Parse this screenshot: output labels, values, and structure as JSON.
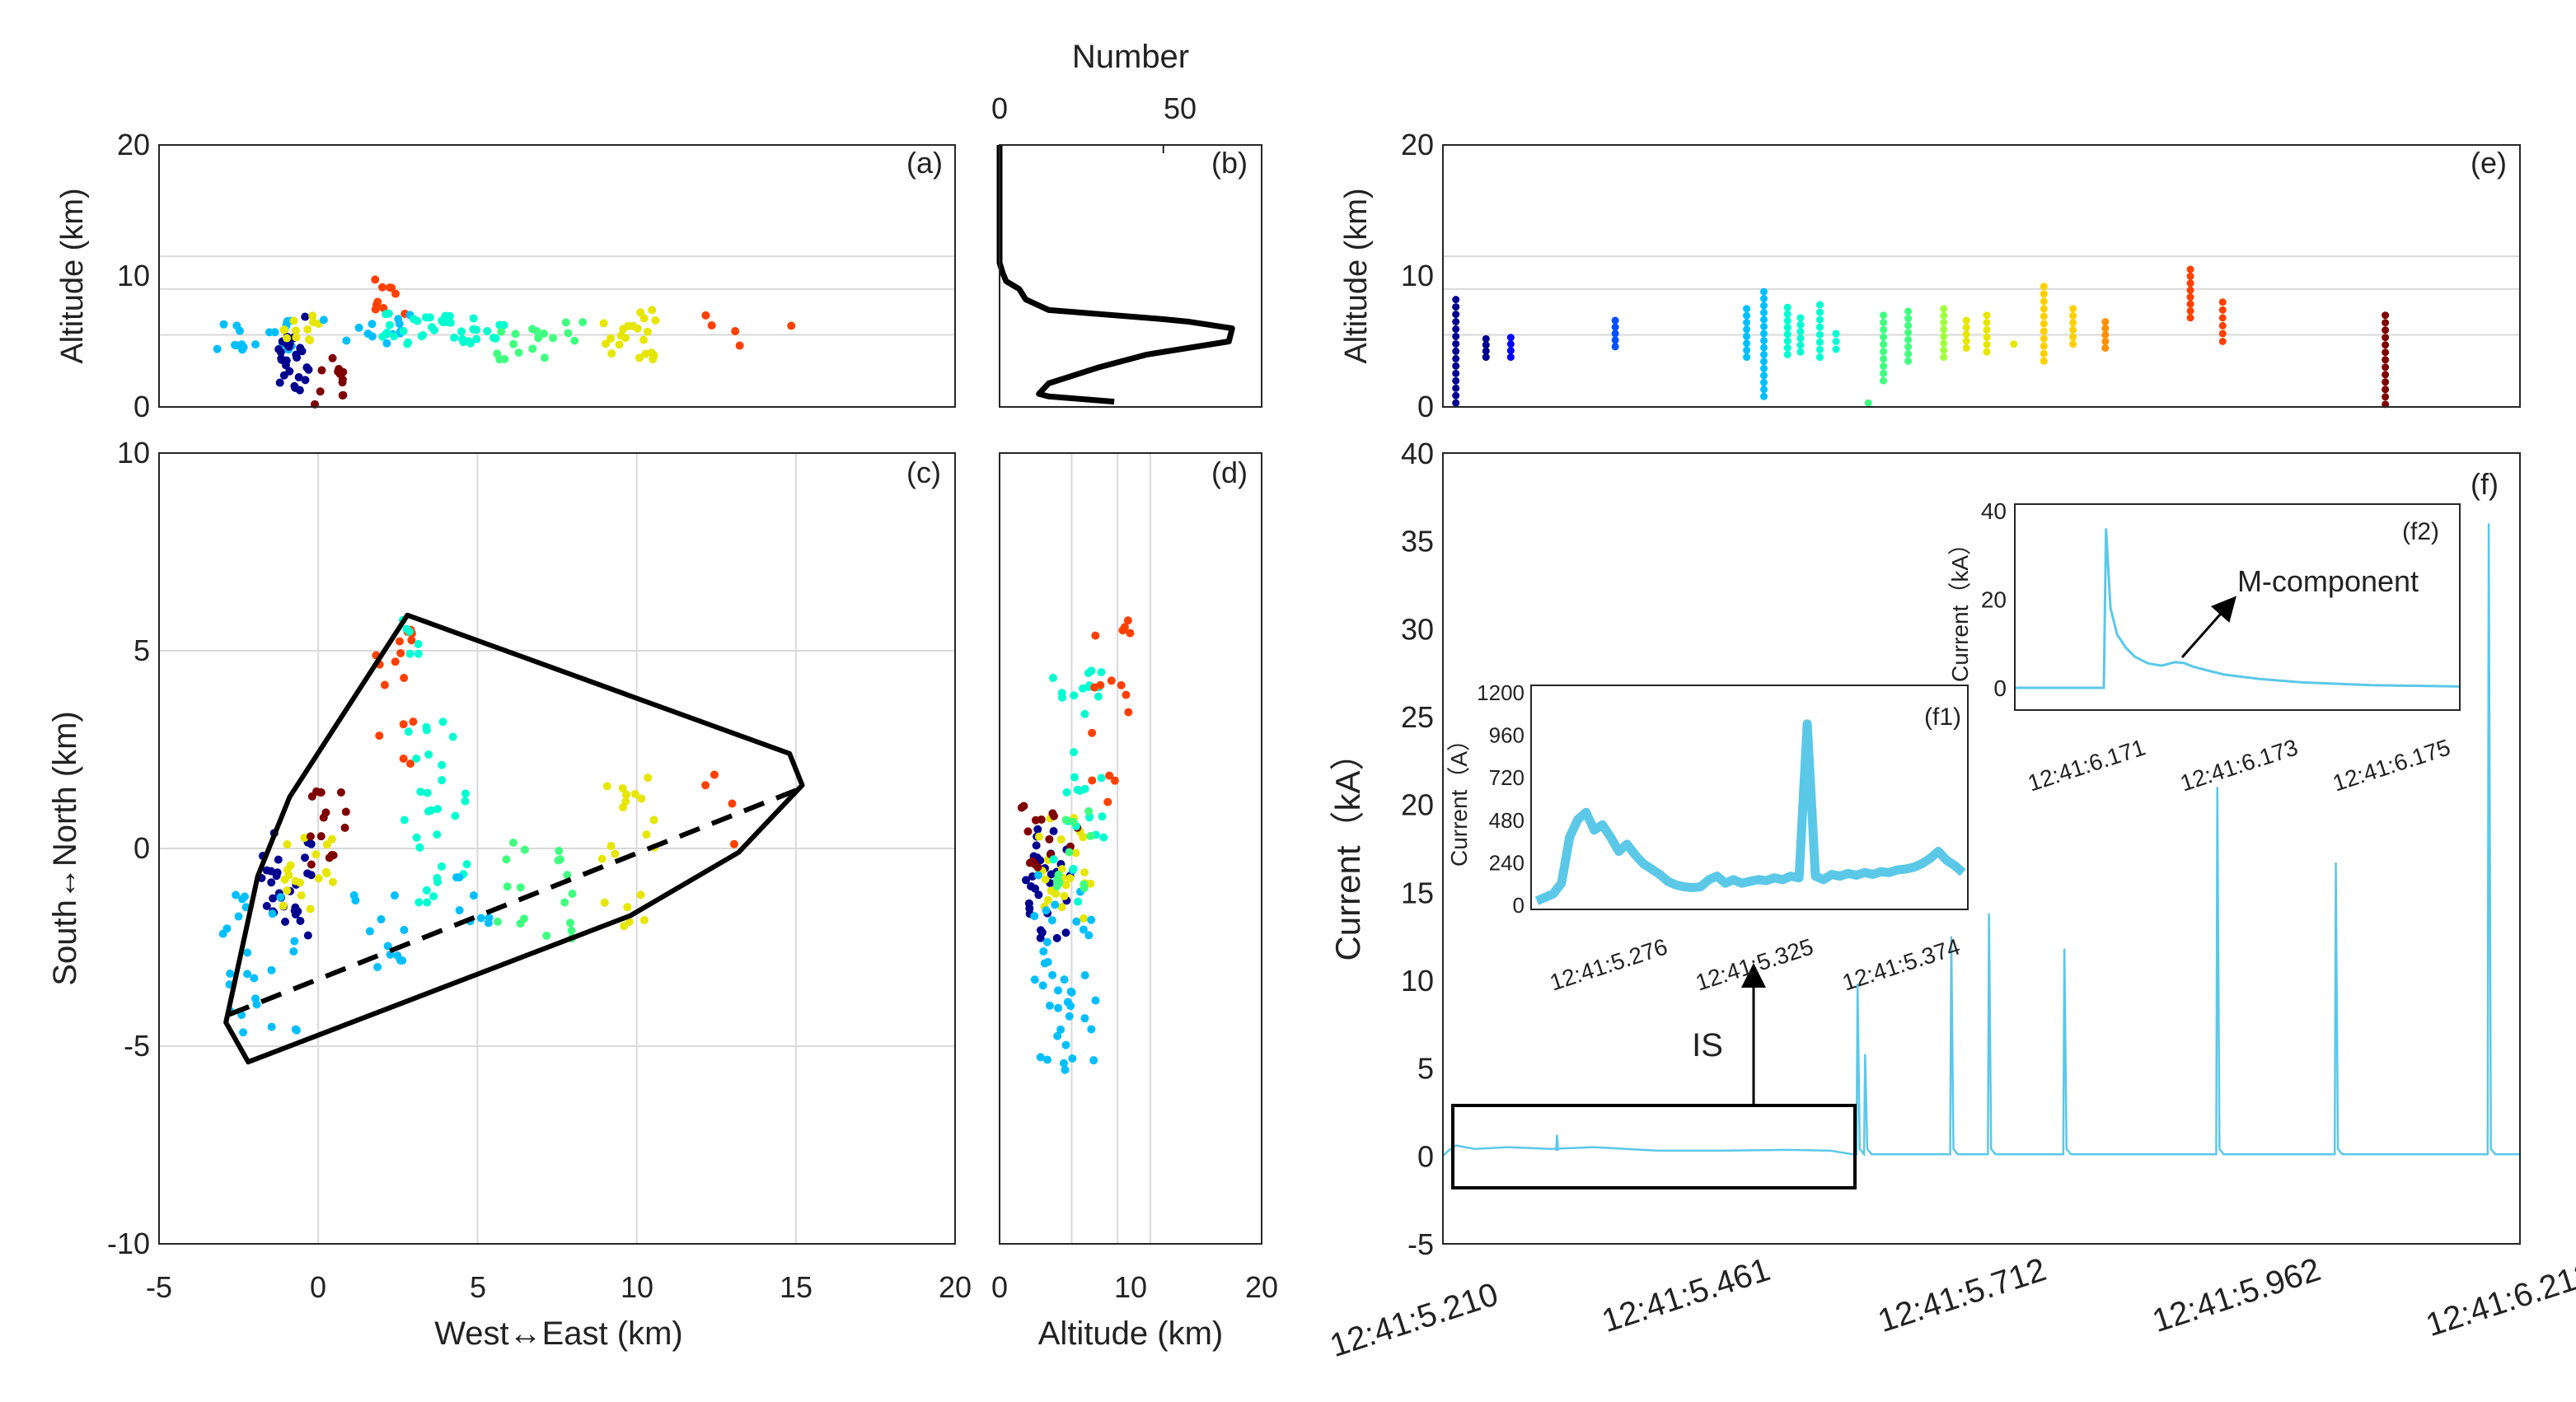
{
  "figure": {
    "colors": {
      "frame": "#262626",
      "grid": "#d9d9d9",
      "current": "#5bc8e8",
      "hull": "#000000",
      "palette": [
        "#00008f",
        "#0000ff",
        "#0050ff",
        "#00bfff",
        "#00ffd0",
        "#40ff80",
        "#a0ff40",
        "#e6e600",
        "#ffd000",
        "#ff9000",
        "#ff4000",
        "#c01000",
        "#7f0000"
      ]
    }
  },
  "chart_data": [
    {
      "id": "a",
      "type": "scatter",
      "panel_label": "(a)",
      "xlabel": "",
      "ylabel": "Altitude (km)",
      "xlim": [
        -5,
        20
      ],
      "ylim": [
        0,
        20
      ],
      "yticks": [
        "0",
        "10",
        "20"
      ],
      "reference_lines_km": [
        5.5,
        9.0,
        11.5
      ],
      "color_by": "time_index",
      "clusters": [
        {
          "x": -2.0,
          "y": 5.5,
          "w": 1.2,
          "h": 1.2,
          "n": 22,
          "c": 3
        },
        {
          "x": -0.8,
          "y": 4.0,
          "w": 0.5,
          "h": 3.0,
          "n": 28,
          "c": 0
        },
        {
          "x": -0.5,
          "y": 6.0,
          "w": 0.6,
          "h": 1.0,
          "n": 12,
          "c": 7
        },
        {
          "x": 0.3,
          "y": 2.0,
          "w": 0.6,
          "h": 2.0,
          "n": 12,
          "c": 12
        },
        {
          "x": 2.3,
          "y": 8.5,
          "w": 0.6,
          "h": 1.4,
          "n": 10,
          "c": 10
        },
        {
          "x": 1.5,
          "y": 6.0,
          "w": 1.4,
          "h": 1.2,
          "n": 14,
          "c": 3
        },
        {
          "x": 4.0,
          "y": 6.0,
          "w": 2.0,
          "h": 1.2,
          "n": 40,
          "c": 4
        },
        {
          "x": 7.0,
          "y": 5.0,
          "w": 1.5,
          "h": 1.5,
          "n": 18,
          "c": 5
        },
        {
          "x": 9.8,
          "y": 5.5,
          "w": 0.9,
          "h": 2.0,
          "n": 22,
          "c": 7
        },
        {
          "x": 13.5,
          "y": 6.0,
          "w": 1.5,
          "h": 1.5,
          "n": 5,
          "c": 10
        }
      ]
    },
    {
      "id": "b",
      "type": "line",
      "panel_label": "(b)",
      "title": "Number",
      "xlim": [
        0,
        80
      ],
      "ylim": [
        0,
        20
      ],
      "xticks": [
        "0",
        "50"
      ],
      "x": [
        0,
        0,
        0,
        1,
        2,
        6,
        8,
        15,
        50,
        58,
        71,
        70,
        45,
        30,
        15,
        12,
        15,
        35
      ],
      "y": [
        20,
        15,
        11,
        10.2,
        9.6,
        9.0,
        8.2,
        7.4,
        6.7,
        6.5,
        6.0,
        5.0,
        4.0,
        3.0,
        1.8,
        1.0,
        0.8,
        0.4
      ]
    },
    {
      "id": "c",
      "type": "scatter",
      "panel_label": "(c)",
      "xlabel": "West↔East (km)",
      "ylabel": "South↔North (km)",
      "xlim": [
        -5,
        20
      ],
      "ylim": [
        -10,
        10
      ],
      "xticks": [
        "-5",
        "0",
        "5",
        "10",
        "15",
        "20"
      ],
      "yticks": [
        "-10",
        "-5",
        "0",
        "5",
        "10"
      ],
      "grid_x": [
        0,
        5,
        10,
        15
      ],
      "grid_y": [
        -5,
        0,
        5
      ],
      "hull_x": [
        2.8,
        -0.9,
        -1.9,
        -2.9,
        -2.2,
        9.8,
        13.2,
        15.2,
        14.8
      ],
      "hull_y": [
        5.9,
        1.3,
        -0.7,
        -4.4,
        -5.4,
        -1.7,
        -0.1,
        1.6,
        2.4
      ],
      "dashed_line_x": [
        -2.8,
        15.1
      ],
      "dashed_line_y": [
        -4.2,
        1.5
      ],
      "clusters": [
        {
          "x": -1.0,
          "y": -0.9,
          "w": 0.8,
          "h": 1.4,
          "n": 30,
          "c": 0
        },
        {
          "x": -0.3,
          "y": -0.5,
          "w": 0.8,
          "h": 1.2,
          "n": 20,
          "c": 7
        },
        {
          "x": 0.3,
          "y": 0.5,
          "w": 0.6,
          "h": 1.0,
          "n": 15,
          "c": 12
        },
        {
          "x": -1.8,
          "y": -3.2,
          "w": 1.2,
          "h": 2.4,
          "n": 25,
          "c": 3
        },
        {
          "x": 1.8,
          "y": -2.2,
          "w": 1.0,
          "h": 1.2,
          "n": 12,
          "c": 3
        },
        {
          "x": 2.4,
          "y": 3.8,
          "w": 0.6,
          "h": 2.0,
          "n": 16,
          "c": 10
        },
        {
          "x": 3.0,
          "y": 5.3,
          "w": 0.4,
          "h": 0.8,
          "n": 6,
          "c": 4
        },
        {
          "x": 3.7,
          "y": 1.0,
          "w": 1.0,
          "h": 2.4,
          "n": 30,
          "c": 4
        },
        {
          "x": 4.8,
          "y": -1.3,
          "w": 0.6,
          "h": 0.8,
          "n": 8,
          "c": 3
        },
        {
          "x": 7.0,
          "y": -0.9,
          "w": 1.5,
          "h": 1.4,
          "n": 18,
          "c": 5
        },
        {
          "x": 9.8,
          "y": 0.0,
          "w": 0.9,
          "h": 2.0,
          "n": 20,
          "c": 7
        },
        {
          "x": 12.5,
          "y": 0.8,
          "w": 0.7,
          "h": 1.2,
          "n": 4,
          "c": 10
        }
      ]
    },
    {
      "id": "d",
      "type": "scatter",
      "panel_label": "(d)",
      "xlabel": "Altitude (km)",
      "xlim": [
        0,
        20
      ],
      "ylim": [
        -10,
        10
      ],
      "xticks": [
        "0",
        "10",
        "20"
      ],
      "reference_lines_km": [
        5.5,
        9.0,
        11.5
      ],
      "clusters": [
        {
          "x": 3.5,
          "y": -0.9,
          "w": 2.0,
          "h": 1.4,
          "n": 30,
          "c": 0
        },
        {
          "x": 5.0,
          "y": -0.5,
          "w": 2.0,
          "h": 1.4,
          "n": 25,
          "c": 7
        },
        {
          "x": 3.5,
          "y": 0.3,
          "w": 2.5,
          "h": 0.8,
          "n": 15,
          "c": 12
        },
        {
          "x": 5.0,
          "y": -3.0,
          "w": 2.5,
          "h": 2.6,
          "n": 40,
          "c": 3
        },
        {
          "x": 6.0,
          "y": 1.5,
          "w": 2.0,
          "h": 3.0,
          "n": 30,
          "c": 4
        },
        {
          "x": 8.5,
          "y": 3.5,
          "w": 1.5,
          "h": 2.5,
          "n": 16,
          "c": 10
        },
        {
          "x": 5.5,
          "y": 0.0,
          "w": 2.0,
          "h": 1.0,
          "n": 12,
          "c": 5
        }
      ]
    },
    {
      "id": "e",
      "type": "scatter",
      "panel_label": "(e)",
      "ylabel": "Altitude (km)",
      "ylim": [
        0,
        20
      ],
      "yticks": [
        "0",
        "10",
        "20"
      ],
      "reference_lines_km": [
        5.5,
        9.0,
        11.5
      ],
      "columns": [
        {
          "t": 0.012,
          "ymin": 0.3,
          "ymax": 8.2,
          "c": 0
        },
        {
          "t": 0.04,
          "ymin": 3.8,
          "ymax": 5.2,
          "c": 0
        },
        {
          "t": 0.063,
          "ymin": 3.8,
          "ymax": 5.3,
          "c": 1
        },
        {
          "t": 0.16,
          "ymin": 4.6,
          "ymax": 6.6,
          "c": 2
        },
        {
          "t": 0.282,
          "ymin": 3.8,
          "ymax": 7.5,
          "c": 3
        },
        {
          "t": 0.298,
          "ymin": 0.8,
          "ymax": 8.8,
          "c": 3
        },
        {
          "t": 0.32,
          "ymin": 4.0,
          "ymax": 7.6,
          "c": 4
        },
        {
          "t": 0.332,
          "ymin": 4.2,
          "ymax": 6.8,
          "c": 4
        },
        {
          "t": 0.35,
          "ymin": 3.8,
          "ymax": 7.8,
          "c": 4
        },
        {
          "t": 0.365,
          "ymin": 4.4,
          "ymax": 5.6,
          "c": 4
        },
        {
          "t": 0.395,
          "ymin": 0.3,
          "ymax": 0.4,
          "c": 5
        },
        {
          "t": 0.409,
          "ymin": 2.0,
          "ymax": 7.0,
          "c": 5
        },
        {
          "t": 0.432,
          "ymin": 3.5,
          "ymax": 7.3,
          "c": 5
        },
        {
          "t": 0.465,
          "ymin": 3.8,
          "ymax": 7.5,
          "c": 6
        },
        {
          "t": 0.486,
          "ymin": 4.5,
          "ymax": 6.6,
          "c": 7
        },
        {
          "t": 0.505,
          "ymin": 4.2,
          "ymax": 7.0,
          "c": 7
        },
        {
          "t": 0.53,
          "ymin": 4.8,
          "ymax": 5.0,
          "c": 7
        },
        {
          "t": 0.558,
          "ymin": 3.5,
          "ymax": 9.2,
          "c": 8
        },
        {
          "t": 0.585,
          "ymin": 4.8,
          "ymax": 7.5,
          "c": 8
        },
        {
          "t": 0.615,
          "ymin": 4.5,
          "ymax": 6.5,
          "c": 9
        },
        {
          "t": 0.694,
          "ymin": 6.8,
          "ymax": 10.5,
          "c": 10
        },
        {
          "t": 0.724,
          "ymin": 5.0,
          "ymax": 8.0,
          "c": 10
        },
        {
          "t": 0.875,
          "ymin": 0.2,
          "ymax": 7.0,
          "c": 12
        }
      ]
    },
    {
      "id": "f",
      "type": "line",
      "panel_label": "(f)",
      "ylabel": "Current（kA）",
      "ylim": [
        -5,
        40
      ],
      "yticks": [
        "-5",
        "0",
        "5",
        "10",
        "15",
        "20",
        "25",
        "30",
        "35",
        "40"
      ],
      "xticks": [
        "12:41:5.210",
        "12:41:5.461",
        "12:41:5.712",
        "12:41:5.962",
        "12:41:6.213"
      ],
      "annotation": "IS",
      "peaks_kA": [
        {
          "t": 0.385,
          "value": 9.8
        },
        {
          "t": 0.392,
          "value": 5.8
        },
        {
          "t": 0.472,
          "value": 12.5
        },
        {
          "t": 0.507,
          "value": 13.8
        },
        {
          "t": 0.577,
          "value": 11.8
        },
        {
          "t": 0.719,
          "value": 21.0
        },
        {
          "t": 0.829,
          "value": 16.7
        },
        {
          "t": 0.971,
          "value": 36.0
        }
      ]
    },
    {
      "id": "f1",
      "type": "line",
      "panel_label": "(f1)",
      "ylabel": "Current（A）",
      "ylim": [
        0,
        1200
      ],
      "yticks": [
        "0",
        "240",
        "480",
        "720",
        "960",
        "1200"
      ],
      "xticks": [
        "12:41:5.276",
        "12:41:5.325",
        "12:41:5.374"
      ],
      "y": [
        20,
        40,
        60,
        120,
        380,
        480,
        520,
        420,
        450,
        380,
        300,
        340,
        280,
        230,
        200,
        170,
        130,
        110,
        100,
        95,
        100,
        140,
        160,
        120,
        140,
        120,
        130,
        140,
        135,
        150,
        140,
        160,
        150,
        1020,
        160,
        140,
        170,
        160,
        175,
        165,
        180,
        170,
        185,
        180,
        195,
        200,
        210,
        230,
        260,
        300,
        250,
        220,
        180
      ]
    },
    {
      "id": "f2",
      "type": "line",
      "panel_label": "(f2)",
      "ylabel": "Current（kA）",
      "ylim": [
        0,
        40
      ],
      "yticks": [
        "0",
        "20",
        "40"
      ],
      "xticks": [
        "12:41:6.171",
        "12:41:6.173",
        "12:41:6.175"
      ],
      "annotation": "M-component",
      "x": [
        0,
        0.2,
        0.205,
        0.215,
        0.23,
        0.25,
        0.27,
        0.3,
        0.33,
        0.36,
        0.38,
        0.4,
        0.43,
        0.47,
        0.55,
        0.65,
        0.8,
        1.0
      ],
      "y": [
        0,
        0,
        36,
        18,
        12,
        9,
        7,
        5.5,
        5,
        5.8,
        5.6,
        4.8,
        4.0,
        3.0,
        2.0,
        1.2,
        0.6,
        0.3
      ]
    }
  ]
}
